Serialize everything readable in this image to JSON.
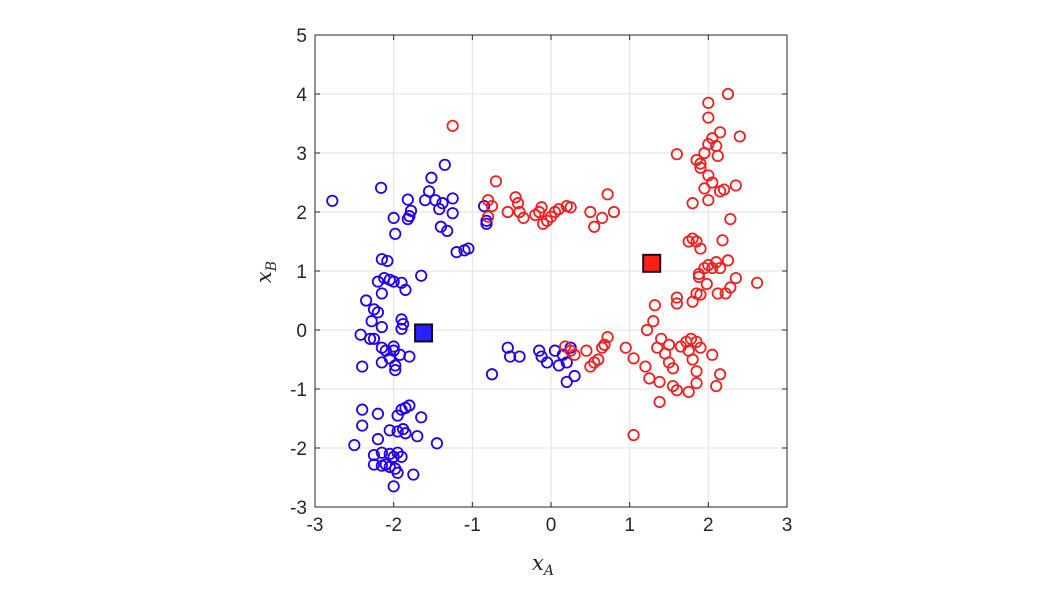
{
  "chart_data": {
    "type": "scatter",
    "xlabel": "x",
    "xlabel_sub": "A",
    "ylabel": "x",
    "ylabel_sub": "B",
    "xlim": [
      -3,
      3
    ],
    "ylim": [
      -3,
      5
    ],
    "xticks": [
      -3,
      -2,
      -1,
      0,
      1,
      2,
      3
    ],
    "yticks": [
      -3,
      -2,
      -1,
      0,
      1,
      2,
      3,
      4,
      5
    ],
    "xtick_labels": [
      "-3",
      "-2",
      "-1",
      "0",
      "1",
      "2",
      "3"
    ],
    "ytick_labels": [
      "-3",
      "-2",
      "-1",
      "0",
      "1",
      "2",
      "3",
      "4",
      "5"
    ],
    "grid": true,
    "series": [
      {
        "color": "#2200ee",
        "marker": "circle",
        "points": [
          [
            -2.78,
            2.19
          ],
          [
            -2.16,
            2.41
          ],
          [
            -1.82,
            2.21
          ],
          [
            -1.78,
            2.02
          ],
          [
            -1.8,
            1.93
          ],
          [
            -1.82,
            1.88
          ],
          [
            -2.0,
            1.9
          ],
          [
            -1.98,
            1.63
          ],
          [
            -1.6,
            2.2
          ],
          [
            -1.55,
            2.35
          ],
          [
            -1.52,
            2.58
          ],
          [
            -1.35,
            2.8
          ],
          [
            -1.47,
            2.2
          ],
          [
            -1.42,
            2.05
          ],
          [
            -1.38,
            2.15
          ],
          [
            -1.25,
            2.23
          ],
          [
            -1.25,
            1.98
          ],
          [
            -1.4,
            1.75
          ],
          [
            -1.32,
            1.68
          ],
          [
            -0.85,
            2.1
          ],
          [
            -0.82,
            1.85
          ],
          [
            -0.82,
            1.8
          ],
          [
            -1.2,
            1.32
          ],
          [
            -1.1,
            1.35
          ],
          [
            -1.05,
            1.38
          ],
          [
            -2.15,
            1.2
          ],
          [
            -2.08,
            1.17
          ],
          [
            -2.12,
            0.88
          ],
          [
            -2.05,
            0.85
          ],
          [
            -2.0,
            0.82
          ],
          [
            -1.9,
            0.8
          ],
          [
            -1.85,
            0.68
          ],
          [
            -1.65,
            0.92
          ],
          [
            -2.2,
            0.82
          ],
          [
            -2.15,
            0.62
          ],
          [
            -2.35,
            0.5
          ],
          [
            -2.25,
            0.35
          ],
          [
            -2.2,
            0.3
          ],
          [
            -2.28,
            0.15
          ],
          [
            -2.15,
            0.05
          ],
          [
            -1.9,
            0.18
          ],
          [
            -1.88,
            0.1
          ],
          [
            -1.9,
            0.02
          ],
          [
            -2.42,
            -0.08
          ],
          [
            -2.3,
            -0.15
          ],
          [
            -2.25,
            -0.15
          ],
          [
            -2.15,
            -0.3
          ],
          [
            -2.1,
            -0.35
          ],
          [
            -2.0,
            -0.28
          ],
          [
            -2.0,
            -0.35
          ],
          [
            -1.92,
            -0.42
          ],
          [
            -2.05,
            -0.48
          ],
          [
            -1.8,
            -0.45
          ],
          [
            -2.15,
            -0.55
          ],
          [
            -1.98,
            -0.6
          ],
          [
            -2.4,
            -0.62
          ],
          [
            -1.98,
            -0.68
          ],
          [
            -0.55,
            -0.3
          ],
          [
            -0.52,
            -0.45
          ],
          [
            -0.4,
            -0.45
          ],
          [
            -0.15,
            -0.35
          ],
          [
            -0.12,
            -0.45
          ],
          [
            -0.05,
            -0.55
          ],
          [
            0.05,
            -0.35
          ],
          [
            0.15,
            -0.42
          ],
          [
            0.2,
            -0.55
          ],
          [
            0.25,
            -0.3
          ],
          [
            0.1,
            -0.6
          ],
          [
            0.3,
            -0.78
          ],
          [
            0.2,
            -0.88
          ],
          [
            -0.75,
            -0.75
          ],
          [
            -2.4,
            -1.35
          ],
          [
            -2.2,
            -1.42
          ],
          [
            -2.4,
            -1.62
          ],
          [
            -1.95,
            -1.45
          ],
          [
            -1.9,
            -1.35
          ],
          [
            -1.85,
            -1.32
          ],
          [
            -1.8,
            -1.28
          ],
          [
            -1.65,
            -1.48
          ],
          [
            -2.05,
            -1.7
          ],
          [
            -1.95,
            -1.72
          ],
          [
            -1.85,
            -1.75
          ],
          [
            -1.88,
            -1.68
          ],
          [
            -1.7,
            -1.8
          ],
          [
            -1.45,
            -1.92
          ],
          [
            -2.5,
            -1.95
          ],
          [
            -2.2,
            -1.85
          ],
          [
            -2.25,
            -2.12
          ],
          [
            -2.15,
            -2.08
          ],
          [
            -2.05,
            -2.1
          ],
          [
            -2.0,
            -2.15
          ],
          [
            -1.95,
            -2.08
          ],
          [
            -1.9,
            -2.15
          ],
          [
            -2.25,
            -2.28
          ],
          [
            -2.15,
            -2.3
          ],
          [
            -2.1,
            -2.28
          ],
          [
            -2.05,
            -2.32
          ],
          [
            -1.98,
            -2.35
          ],
          [
            -1.95,
            -2.42
          ],
          [
            -1.75,
            -2.45
          ],
          [
            -2.0,
            -2.65
          ]
        ]
      },
      {
        "color": "#ee2222",
        "marker": "circle",
        "points": [
          [
            -1.25,
            3.46
          ],
          [
            -0.75,
            2.1
          ],
          [
            -0.8,
            1.92
          ],
          [
            -0.7,
            2.52
          ],
          [
            -0.8,
            2.2
          ],
          [
            -0.55,
            2.0
          ],
          [
            -0.45,
            2.25
          ],
          [
            -0.42,
            2.15
          ],
          [
            -0.4,
            2.0
          ],
          [
            -0.35,
            1.9
          ],
          [
            -0.2,
            1.95
          ],
          [
            -0.15,
            2.0
          ],
          [
            -0.12,
            2.08
          ],
          [
            -0.1,
            1.8
          ],
          [
            -0.05,
            1.85
          ],
          [
            0.0,
            1.92
          ],
          [
            0.05,
            2.0
          ],
          [
            0.1,
            2.05
          ],
          [
            0.25,
            2.08
          ],
          [
            0.2,
            2.1
          ],
          [
            0.5,
            2.0
          ],
          [
            0.55,
            1.75
          ],
          [
            0.65,
            1.9
          ],
          [
            0.72,
            2.3
          ],
          [
            0.8,
            2.0
          ],
          [
            0.18,
            -0.28
          ],
          [
            0.25,
            -0.35
          ],
          [
            0.3,
            -0.42
          ],
          [
            0.45,
            -0.35
          ],
          [
            0.5,
            -0.62
          ],
          [
            0.55,
            -0.55
          ],
          [
            0.6,
            -0.5
          ],
          [
            0.65,
            -0.3
          ],
          [
            0.68,
            -0.25
          ],
          [
            0.72,
            -0.12
          ],
          [
            0.95,
            -0.3
          ],
          [
            1.05,
            -0.48
          ],
          [
            1.2,
            -0.62
          ],
          [
            1.25,
            -0.82
          ],
          [
            1.22,
            0.0
          ],
          [
            1.3,
            0.15
          ],
          [
            1.32,
            0.42
          ],
          [
            1.35,
            -0.3
          ],
          [
            1.4,
            -0.15
          ],
          [
            1.38,
            -0.88
          ],
          [
            1.45,
            -0.4
          ],
          [
            1.5,
            -0.25
          ],
          [
            1.5,
            -0.55
          ],
          [
            1.55,
            -0.95
          ],
          [
            1.38,
            -1.22
          ],
          [
            1.55,
            -0.65
          ],
          [
            1.6,
            0.55
          ],
          [
            1.6,
            0.45
          ],
          [
            1.65,
            -0.28
          ],
          [
            1.72,
            -0.2
          ],
          [
            1.75,
            -0.35
          ],
          [
            1.78,
            -0.15
          ],
          [
            1.8,
            -0.5
          ],
          [
            1.85,
            -0.2
          ],
          [
            1.85,
            -0.7
          ],
          [
            1.85,
            -0.9
          ],
          [
            1.75,
            -1.05
          ],
          [
            1.6,
            -1.02
          ],
          [
            1.9,
            -0.3
          ],
          [
            2.05,
            -0.42
          ],
          [
            2.1,
            -0.95
          ],
          [
            2.15,
            -0.75
          ],
          [
            1.05,
            -1.78
          ],
          [
            1.75,
            1.5
          ],
          [
            1.8,
            1.55
          ],
          [
            1.85,
            1.5
          ],
          [
            1.9,
            1.38
          ],
          [
            1.8,
            0.48
          ],
          [
            1.85,
            0.62
          ],
          [
            1.88,
            0.9
          ],
          [
            1.95,
            1.05
          ],
          [
            2.0,
            1.1
          ],
          [
            2.05,
            1.05
          ],
          [
            2.1,
            1.15
          ],
          [
            2.15,
            1.05
          ],
          [
            1.98,
            0.78
          ],
          [
            2.12,
            0.62
          ],
          [
            2.22,
            0.62
          ],
          [
            2.28,
            0.72
          ],
          [
            2.25,
            1.18
          ],
          [
            2.35,
            0.88
          ],
          [
            2.62,
            0.8
          ],
          [
            2.18,
            1.52
          ],
          [
            1.88,
            0.95
          ],
          [
            1.9,
            0.6
          ],
          [
            2.28,
            1.88
          ],
          [
            2.35,
            2.45
          ],
          [
            1.6,
            2.98
          ],
          [
            1.8,
            2.15
          ],
          [
            2.0,
            2.2
          ],
          [
            2.05,
            2.5
          ],
          [
            2.15,
            2.35
          ],
          [
            2.2,
            2.38
          ],
          [
            1.85,
            2.88
          ],
          [
            1.9,
            2.75
          ],
          [
            1.95,
            3.0
          ],
          [
            2.0,
            3.15
          ],
          [
            2.05,
            3.25
          ],
          [
            2.1,
            3.12
          ],
          [
            2.12,
            2.95
          ],
          [
            1.95,
            2.4
          ],
          [
            2.15,
            3.35
          ],
          [
            2.4,
            3.28
          ],
          [
            2.0,
            3.6
          ],
          [
            2.0,
            3.85
          ],
          [
            2.25,
            4.0
          ],
          [
            1.9,
            2.82
          ],
          [
            2.0,
            2.62
          ]
        ]
      }
    ],
    "centroids": [
      {
        "x": -1.62,
        "y": -0.05,
        "color": "#2a1fff",
        "marker": "square"
      },
      {
        "x": 1.28,
        "y": 1.13,
        "color": "#ff2015",
        "marker": "square"
      }
    ]
  }
}
